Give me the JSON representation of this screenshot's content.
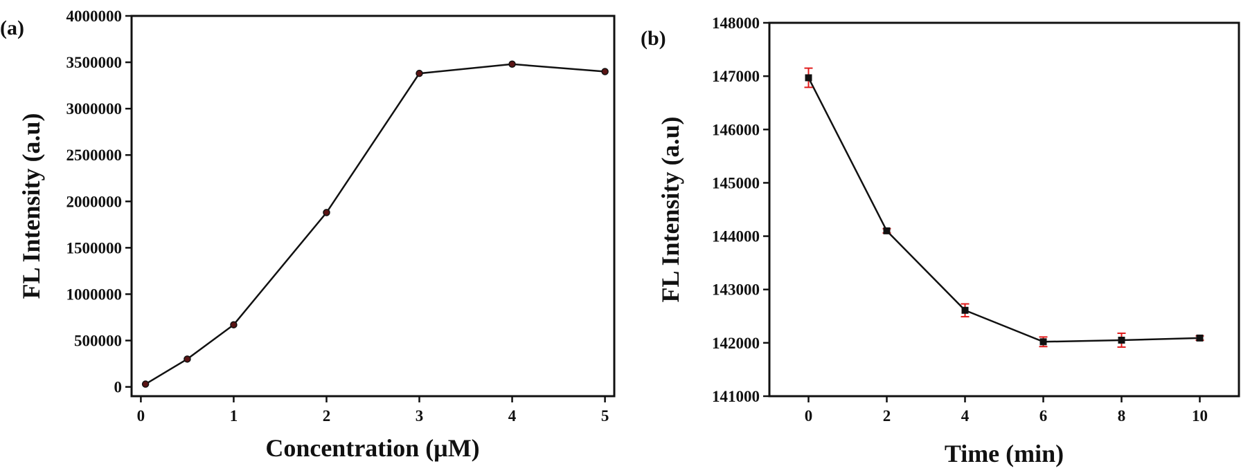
{
  "chart_data": [
    {
      "type": "line",
      "panel_label": "(a)",
      "xlabel": "Concentration (μM)",
      "ylabel": "FL Intensity (a.u)",
      "xlim": [
        -0.1,
        5.1
      ],
      "ylim": [
        -100000,
        4000000
      ],
      "x_ticks": [
        0,
        1,
        2,
        3,
        4,
        5
      ],
      "y_ticks": [
        0,
        500000,
        1000000,
        1500000,
        2000000,
        2500000,
        3000000,
        3500000,
        4000000
      ],
      "marker": "circle",
      "grid": false,
      "colors": {
        "line": "#111111",
        "marker": "#5a1414"
      },
      "series": [
        {
          "x": [
            0.05,
            0.5,
            1,
            2,
            3,
            4,
            5
          ],
          "y": [
            30000,
            300000,
            670000,
            1880000,
            3380000,
            3480000,
            3400000
          ]
        }
      ]
    },
    {
      "type": "line",
      "panel_label": "(b)",
      "xlabel": "Time (min)",
      "ylabel": "FL Intensity (a.u)",
      "xlim": [
        -1,
        11
      ],
      "ylim": [
        141000,
        148000
      ],
      "x_ticks": [
        0,
        2,
        4,
        6,
        8,
        10
      ],
      "y_ticks": [
        141000,
        142000,
        143000,
        144000,
        145000,
        146000,
        147000,
        148000
      ],
      "marker": "square",
      "grid": false,
      "colors": {
        "line": "#111111",
        "marker": "#111111",
        "error_bars": "#e01b1b"
      },
      "series": [
        {
          "x": [
            0,
            2,
            4,
            6,
            8,
            10
          ],
          "y": [
            146970,
            144100,
            142610,
            142020,
            142050,
            142090
          ],
          "error": [
            180,
            40,
            120,
            90,
            130,
            40
          ]
        }
      ]
    }
  ]
}
